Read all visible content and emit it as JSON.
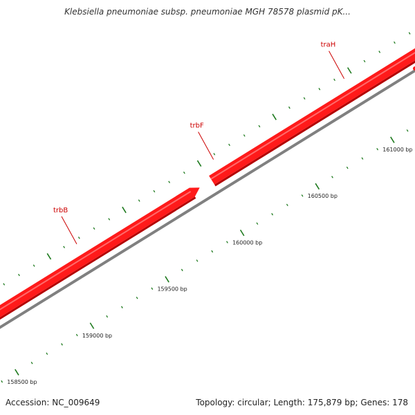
{
  "title": "Klebsiella pneumoniae subsp. pneumoniae MGH 78578 plasmid pK...",
  "footer": {
    "accession": "Accession: NC_009649",
    "info": "Topology: circular; Length: 175,879 bp; Genes: 178"
  },
  "colors": {
    "gene": "#ff1a1a",
    "gene_label": "#cc0000",
    "backbone": "#808080",
    "tick": "#1e7a1e"
  },
  "map": {
    "bp_start": 158400,
    "bp_end": 161450,
    "ticks_minor_step": 100,
    "ticks_major_step": 500,
    "major_labels": [
      {
        "bp": 158500,
        "text": "158500 bp"
      },
      {
        "bp": 159000,
        "text": "159000 bp"
      },
      {
        "bp": 159500,
        "text": "159500 bp"
      },
      {
        "bp": 160000,
        "text": "160000 bp"
      },
      {
        "bp": 160500,
        "text": "160500 bp"
      },
      {
        "bp": 161000,
        "text": "161000 bp"
      }
    ],
    "genes": [
      {
        "name": "trbB",
        "start": 158400,
        "end": 159930,
        "label_at": 159170
      },
      {
        "name": "trbF",
        "start": 160010,
        "end": 161450,
        "label_at": 160080
      },
      {
        "name": "traH",
        "start": null,
        "end": null,
        "label_at": 160950
      }
    ]
  }
}
